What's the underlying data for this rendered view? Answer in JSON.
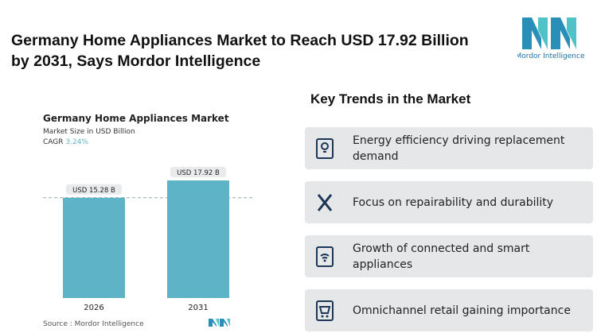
{
  "header": {
    "title": "Germany Home Appliances Market to Reach USD 17.92 Billion by 2031, Says Mordor Intelligence",
    "logo": "Mordor Intelligence"
  },
  "chart_data": {
    "type": "bar",
    "title": "Germany Home Appliances Market",
    "subtitle": "Market Size in USD Billion",
    "cagr_label": "CAGR",
    "cagr_value": "3.24%",
    "categories": [
      "2026",
      "2031"
    ],
    "values": [
      15.28,
      17.92
    ],
    "value_labels": [
      "USD 15.28 B",
      "USD 17.92 B"
    ],
    "color": "#5eb3c6",
    "source": "Source : Mordor Intelligence"
  },
  "trends": {
    "title": "Key Trends in the Market",
    "items": [
      "Energy efficiency driving replacement demand",
      "Focus on repairability and durability",
      "Growth of connected and smart appliances",
      "Omnichannel retail gaining importance"
    ]
  }
}
